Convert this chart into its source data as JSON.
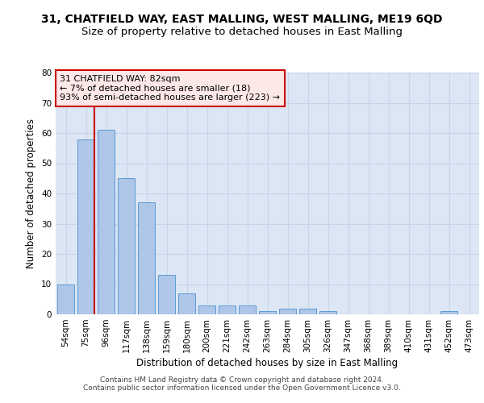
{
  "title_line1": "31, CHATFIELD WAY, EAST MALLING, WEST MALLING, ME19 6QD",
  "title_line2": "Size of property relative to detached houses in East Malling",
  "xlabel": "Distribution of detached houses by size in East Malling",
  "ylabel": "Number of detached properties",
  "bar_labels": [
    "54sqm",
    "75sqm",
    "96sqm",
    "117sqm",
    "138sqm",
    "159sqm",
    "180sqm",
    "200sqm",
    "221sqm",
    "242sqm",
    "263sqm",
    "284sqm",
    "305sqm",
    "326sqm",
    "347sqm",
    "368sqm",
    "389sqm",
    "410sqm",
    "431sqm",
    "452sqm",
    "473sqm"
  ],
  "bar_values": [
    10,
    58,
    61,
    45,
    37,
    13,
    7,
    3,
    3,
    3,
    1,
    2,
    2,
    1,
    0,
    0,
    0,
    0,
    0,
    1,
    0
  ],
  "bar_color": "#aec6e8",
  "bar_edge_color": "#5b9bd5",
  "grid_color": "#c8d4e8",
  "background_color": "#dce6f5",
  "vline_x": 1.4,
  "vline_color": "#cc0000",
  "annotation_title": "31 CHATFIELD WAY: 82sqm",
  "annotation_line1": "← 7% of detached houses are smaller (18)",
  "annotation_line2": "93% of semi-detached houses are larger (223) →",
  "annotation_box_facecolor": "#fde8e8",
  "annotation_box_edge": "#cc0000",
  "ylim": [
    0,
    80
  ],
  "yticks": [
    0,
    10,
    20,
    30,
    40,
    50,
    60,
    70,
    80
  ],
  "footer_line1": "Contains HM Land Registry data © Crown copyright and database right 2024.",
  "footer_line2": "Contains public sector information licensed under the Open Government Licence v3.0.",
  "title_fontsize": 10,
  "subtitle_fontsize": 9.5,
  "axis_label_fontsize": 8.5,
  "tick_fontsize": 7.5,
  "annotation_fontsize": 8,
  "footer_fontsize": 6.5
}
